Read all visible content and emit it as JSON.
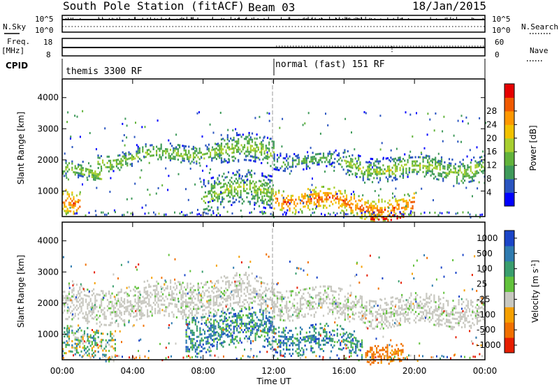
{
  "header": {
    "station": "South Pole Station (fitACF)",
    "beam": "Beam 03",
    "date": "18/Jan/2015"
  },
  "status_panels": {
    "nsky_label": "N.Sky",
    "nsky_ticks": [
      "10^5",
      "10^0"
    ],
    "nsearch_label": "N.Search",
    "freq_label_1": "Freq.",
    "freq_label_2": "[MHz]",
    "freq_ticks": [
      "18",
      "8"
    ],
    "nave_ticks": [
      "60",
      "0"
    ],
    "nave_label": "Nave",
    "cpid_label": "CPID",
    "cpid_segments": [
      {
        "start_hour": 0,
        "end_hour": 12,
        "label": "themis 3300 RF"
      },
      {
        "start_hour": 12,
        "end_hour": 24,
        "label": "normal (fast) 151 RF"
      }
    ],
    "freq_level_mhz": 12
  },
  "chart_data": [
    {
      "type": "heatmap",
      "panel": "power",
      "ylabel": "Slant Range [km]",
      "ylim": [
        180,
        4600
      ],
      "yticks": [
        1000,
        2000,
        3000,
        4000
      ],
      "xlim_hours": [
        0,
        24
      ],
      "colorbar_label": "Power [dB]",
      "colorbar_ticks": [
        "4",
        "8",
        "12",
        "16",
        "20",
        "24",
        "28"
      ],
      "colorbar_colors": [
        "#0000ff",
        "#2a55c0",
        "#3f9a5a",
        "#62b33b",
        "#a8cf30",
        "#f2c200",
        "#ff9800",
        "#f05a00",
        "#e60000"
      ],
      "bands": [
        {
          "x": [
            0,
            2.2
          ],
          "y": [
            1500,
            2100
          ],
          "level": "medium"
        },
        {
          "x": [
            2,
            9
          ],
          "y": [
            1900,
            2500
          ],
          "level": "medium"
        },
        {
          "x": [
            9,
            12
          ],
          "y": [
            1700,
            2600
          ],
          "level": "medium"
        },
        {
          "x": [
            12,
            16
          ],
          "y": [
            1600,
            2200
          ],
          "level": "low"
        },
        {
          "x": [
            16,
            24
          ],
          "y": [
            1500,
            2300
          ],
          "level": "medium"
        },
        {
          "x": [
            0,
            1
          ],
          "y": [
            300,
            1100
          ],
          "level": "high"
        },
        {
          "x": [
            8,
            12
          ],
          "y": [
            300,
            1400
          ],
          "level": "medium"
        },
        {
          "x": [
            12,
            20
          ],
          "y": [
            300,
            1000
          ],
          "level": "high"
        },
        {
          "x": [
            17.5,
            19.5
          ],
          "y": [
            250,
            500
          ],
          "level": "very high"
        }
      ]
    },
    {
      "type": "heatmap",
      "panel": "velocity",
      "ylabel": "Slant Range [km]",
      "ylim": [
        180,
        4600
      ],
      "yticks": [
        1000,
        2000,
        3000,
        4000
      ],
      "xlabel": "Time UT",
      "xlim_hours": [
        0,
        24
      ],
      "xticks": [
        "00:00",
        "04:00",
        "08:00",
        "12:00",
        "16:00",
        "20:00",
        "00:00"
      ],
      "colorbar_label": "Velocity [m s",
      "colorbar_label_superscript": "-1",
      "colorbar_label_suffix": "]",
      "colorbar_ticks": [
        "1000",
        "500",
        "100",
        "25",
        "-25",
        "-100",
        "-500",
        "-1000"
      ],
      "colorbar_colors": [
        "#1b45c8",
        "#2f7bb0",
        "#3a9e6e",
        "#62c23c",
        "#c8c8c0",
        "#f5a000",
        "#f07000",
        "#e61e00"
      ],
      "bands": [
        {
          "x": [
            0,
            12
          ],
          "y": [
            1500,
            2700
          ],
          "class": "ground scatter"
        },
        {
          "x": [
            12,
            24
          ],
          "y": [
            1400,
            2400
          ],
          "class": "ground scatter"
        },
        {
          "x": [
            0,
            3
          ],
          "y": [
            400,
            1400
          ],
          "velocity": "mixed positive"
        },
        {
          "x": [
            7,
            12
          ],
          "y": [
            400,
            1600
          ],
          "velocity": "positive"
        },
        {
          "x": [
            12,
            17
          ],
          "y": [
            300,
            1200
          ],
          "velocity": "positive"
        },
        {
          "x": [
            17.2,
            19.3
          ],
          "y": [
            250,
            900
          ],
          "velocity": "negative"
        }
      ]
    }
  ]
}
